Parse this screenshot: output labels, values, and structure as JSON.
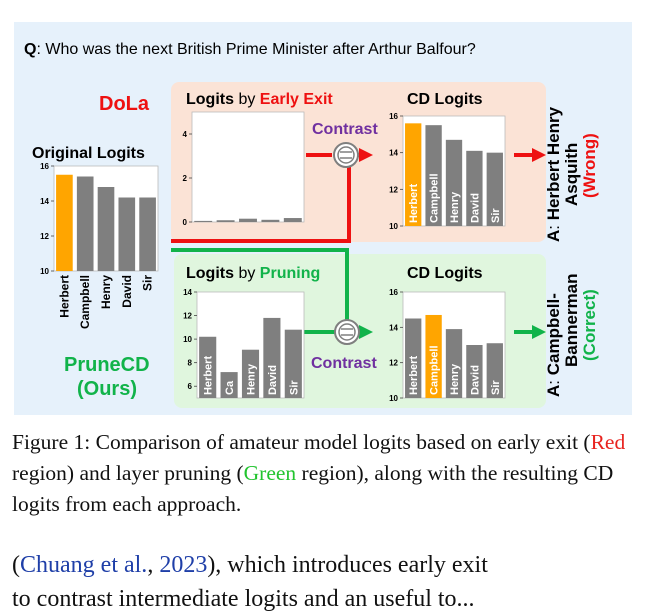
{
  "figure": {
    "question_label": "Q",
    "question_text": ": Who was the next British Prime Minister after Arthur Balfour?",
    "dola_label": "DoLa",
    "prunecd_label": "PruneCD",
    "ours_label": "(Ours)",
    "contrast_label": "Contrast",
    "answer_prefix": "A",
    "answer_top_line1": "Herbert Henry",
    "answer_top_line2": "Asquith",
    "answer_top_verdict": "(Wrong)",
    "answer_bottom_line1": "Campbell-",
    "answer_bottom_line2": "Bannerman",
    "answer_bottom_verdict": "(Correct)",
    "colors": {
      "bg": "#e6f1fb",
      "red_region": "#fbe3d6",
      "green_region": "#e0f6de",
      "highlight": "#ffa500",
      "bar": "#7f7f7f",
      "red": "#ee1111",
      "green": "#11b34a",
      "purple": "#7030a0"
    }
  },
  "chart_data": [
    {
      "type": "bar",
      "title": "Original Logits",
      "categories": [
        "Herbert",
        "Campbell",
        "Henry",
        "David",
        "Sir"
      ],
      "values": [
        15.5,
        15.4,
        14.8,
        14.2,
        14.2
      ],
      "yticks": [
        10,
        12,
        14,
        16
      ],
      "ylim": [
        10,
        16
      ],
      "highlight": "Herbert"
    },
    {
      "type": "bar",
      "title_part1": "Logits",
      "title_part2": " by ",
      "title_part3": "Early Exit",
      "categories": [
        "Herbert",
        "Campbell",
        "Henry",
        "David",
        "Sir"
      ],
      "values": [
        0.05,
        0.08,
        0.15,
        0.1,
        0.18
      ],
      "yticks": [
        0,
        2,
        4
      ],
      "ylim": [
        0,
        5
      ]
    },
    {
      "type": "bar",
      "title": "CD Logits",
      "categories": [
        "Herbert",
        "Campbell",
        "Henry",
        "David",
        "Sir"
      ],
      "values": [
        15.6,
        15.5,
        14.7,
        14.1,
        14.0
      ],
      "yticks": [
        10,
        12,
        14,
        16
      ],
      "ylim": [
        10,
        16
      ],
      "highlight": "Herbert"
    },
    {
      "type": "bar",
      "title_part1": "Logits",
      "title_part2": " by ",
      "title_part3": "Pruning",
      "categories": [
        "Herbert",
        "Ca",
        "Henry",
        "David",
        "Sir"
      ],
      "values": [
        10.2,
        7.2,
        9.1,
        11.8,
        10.8
      ],
      "yticks": [
        6,
        8,
        10,
        12,
        14
      ],
      "ylim": [
        5,
        14
      ]
    },
    {
      "type": "bar",
      "title": "CD Logits",
      "categories": [
        "Herbert",
        "Campbell",
        "Henry",
        "David",
        "Sir"
      ],
      "values": [
        14.5,
        14.7,
        13.9,
        13.0,
        13.1
      ],
      "yticks": [
        10,
        12,
        14,
        16
      ],
      "ylim": [
        10,
        16
      ],
      "highlight": "Campbell"
    }
  ],
  "caption": {
    "part1": "Figure 1: Comparison of amateur model logits based on early exit (",
    "red_word": "Red",
    "part2": " region) and layer pruning (",
    "green_word": "Green",
    "part3": " region), along with the resulting CD logits from each approach."
  },
  "body": {
    "open": "(",
    "cite_author": "Chuang et al.",
    "sep": ", ",
    "cite_year": "2023",
    "rest": "), which introduces early exit",
    "line2": "to contrast intermediate logits and an useful to..."
  }
}
